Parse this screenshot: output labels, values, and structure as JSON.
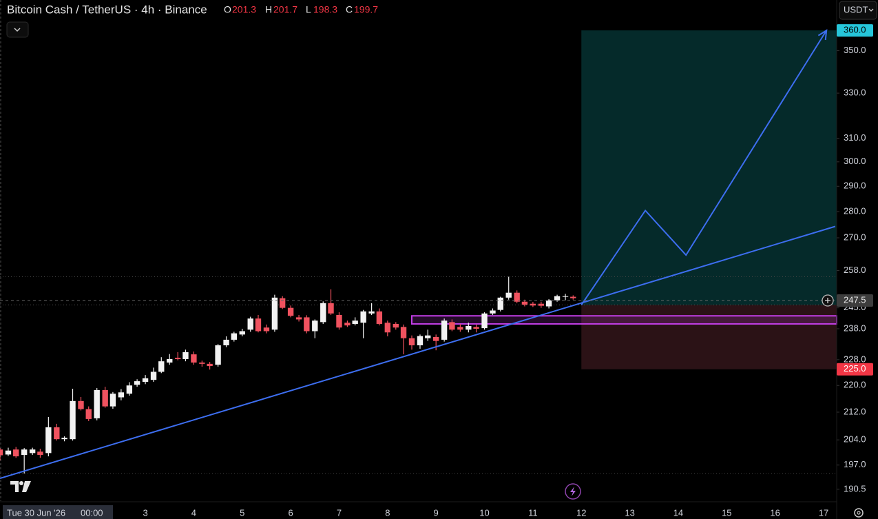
{
  "header": {
    "symbol": "Bitcoin Cash / TetherUS · 4h · Binance",
    "o": "O",
    "h": "H",
    "l": "L",
    "c": "C"
  },
  "currency": "USDT",
  "chart_data": {
    "type": "candlestick",
    "x": [
      0,
      0.17,
      0.33,
      0.5,
      0.67,
      0.83,
      1,
      1.17,
      1.33,
      1.5,
      1.67,
      1.83,
      2,
      2.17,
      2.33,
      2.5,
      2.67,
      2.83,
      3,
      3.17,
      3.33,
      3.5,
      3.67,
      3.83,
      4,
      4.17,
      4.33,
      4.5,
      4.67,
      4.83,
      5,
      5.17,
      5.33,
      5.5,
      5.67,
      5.83,
      6,
      6.17,
      6.33,
      6.5,
      6.67,
      6.83,
      7,
      7.17,
      7.33,
      7.5,
      7.67,
      7.83,
      8,
      8.17,
      8.33,
      8.5,
      8.67,
      8.83,
      9,
      9.17,
      9.33,
      9.5,
      9.67,
      9.83,
      10,
      10.17,
      10.33,
      10.5,
      10.67,
      10.83,
      11,
      11.17,
      11.33,
      11.5,
      11.67,
      11.83
    ],
    "open": [
      201.3,
      199.9,
      201.3,
      199.8,
      200.3,
      200.7,
      200.3,
      207.6,
      204.2,
      204.2,
      215.3,
      212.9,
      210.2,
      218.6,
      213.7,
      216.4,
      217.5,
      220.2,
      221.1,
      221.7,
      224.2,
      227.1,
      228.6,
      228.2,
      229.7,
      227.1,
      226.7,
      226.4,
      232.6,
      234.4,
      236.1,
      237.7,
      241.4,
      238.4,
      237.7,
      248.3,
      245.0,
      241.8,
      241.8,
      237.2,
      240.2,
      246.6,
      242.6,
      240.0,
      239.6,
      240.0,
      243.1,
      243.8,
      240.0,
      239.6,
      238.6,
      234.9,
      232.6,
      234.9,
      235.3,
      234.4,
      240.2,
      238.6,
      237.7,
      238.6,
      238.2,
      243.1,
      244.3,
      248.5,
      250.2,
      247.1,
      246.4,
      246.4,
      245.5,
      247.6,
      248.8,
      248.8
    ],
    "high": [
      201.7,
      201.8,
      202.0,
      201.7,
      201.8,
      201.5,
      210.6,
      208.6,
      205.0,
      219.0,
      216.5,
      213.7,
      219.2,
      219.6,
      218.0,
      218.9,
      221.0,
      221.9,
      223.2,
      225.5,
      228.8,
      229.8,
      230.4,
      231.2,
      230.6,
      227.7,
      227.3,
      233.0,
      235.5,
      237.0,
      238.0,
      242.0,
      242.6,
      239.4,
      249.5,
      249.0,
      245.8,
      242.6,
      242.5,
      241.1,
      247.2,
      251.4,
      243.5,
      240.7,
      241.8,
      244.3,
      246.6,
      244.8,
      240.7,
      240.2,
      239.4,
      235.8,
      236.1,
      237.7,
      236.1,
      241.4,
      241.1,
      239.6,
      240.0,
      239.4,
      243.5,
      244.8,
      248.8,
      255.8,
      251.0,
      247.8,
      247.0,
      247.1,
      248.0,
      249.5,
      249.8,
      249.3
    ],
    "low": [
      198.3,
      199.5,
      199.0,
      194.7,
      199.8,
      199.0,
      199.4,
      203.8,
      203.6,
      203.8,
      212.5,
      209.4,
      209.6,
      213.3,
      213.0,
      215.5,
      216.9,
      219.6,
      220.4,
      221.1,
      223.8,
      226.4,
      227.8,
      227.5,
      226.4,
      225.8,
      224.9,
      225.8,
      232.0,
      233.8,
      235.5,
      237.0,
      236.8,
      236.5,
      237.0,
      244.6,
      241.8,
      240.4,
      236.5,
      234.9,
      239.6,
      242.6,
      237.7,
      238.6,
      239.1,
      234.9,
      242.6,
      239.1,
      235.5,
      237.7,
      229.7,
      231.2,
      231.5,
      234.0,
      231.0,
      233.8,
      237.2,
      237.0,
      236.8,
      236.8,
      237.7,
      242.6,
      243.8,
      247.8,
      246.6,
      245.5,
      245.3,
      245.0,
      244.8,
      247.1,
      247.6,
      247.8
    ],
    "close": [
      199.7,
      201.0,
      199.4,
      201.3,
      201.3,
      199.8,
      207.6,
      204.2,
      204.6,
      215.3,
      212.9,
      210.0,
      218.6,
      213.7,
      217.5,
      217.9,
      220.0,
      221.3,
      222.2,
      224.2,
      227.5,
      228.2,
      228.2,
      230.4,
      227.1,
      226.7,
      226.0,
      232.6,
      234.4,
      236.5,
      237.2,
      241.4,
      237.2,
      237.2,
      248.5,
      245.0,
      242.3,
      241.1,
      237.2,
      240.7,
      246.6,
      243.1,
      238.4,
      239.1,
      240.7,
      243.8,
      243.8,
      239.6,
      236.8,
      238.4,
      234.9,
      232.6,
      235.6,
      235.8,
      234.0,
      240.7,
      237.7,
      237.7,
      238.9,
      238.0,
      243.1,
      244.1,
      248.5,
      250.2,
      247.1,
      246.1,
      245.8,
      245.7,
      247.6,
      249.0,
      249.0,
      248.3
    ],
    "up_color": "#f2f2f2",
    "down_color": "#f0525f",
    "log_y": true,
    "xlim": [
      0,
      17.27
    ],
    "ylim": [
      187.4,
      375.5
    ],
    "xticks": [
      {
        "value": 0,
        "label": "Tue 30 Jun '26"
      },
      3,
      4,
      5,
      6,
      7,
      8,
      9,
      10,
      11,
      12,
      13,
      14,
      15,
      16,
      17
    ],
    "cursor_time": "00:00",
    "yticks": [
      {
        "value": 350,
        "label": "350.0"
      },
      {
        "value": 330,
        "label": "330.0"
      },
      {
        "value": 310,
        "label": "310.0"
      },
      {
        "value": 300,
        "label": "300.0"
      },
      {
        "value": 290,
        "label": "290.0"
      },
      {
        "value": 280,
        "label": "280.0"
      },
      {
        "value": 270,
        "label": "270.0"
      },
      {
        "value": 258,
        "label": "258.0"
      },
      {
        "value": 245,
        "label": "245.0"
      },
      {
        "value": 238,
        "label": "238.0"
      },
      {
        "value": 228,
        "label": "228.0"
      },
      {
        "value": 220,
        "label": "220.0"
      },
      {
        "value": 212,
        "label": "212.0"
      },
      {
        "value": 204,
        "label": "204.0"
      },
      {
        "value": 197,
        "label": "197.0"
      },
      190.5
    ],
    "price_labels": [
      {
        "value": 360,
        "label": "360.0",
        "color": "#26c6da",
        "text_color": "#000000"
      },
      {
        "value": 247.5,
        "label": "247.5",
        "color": "#3d3d3d",
        "text_color": "#e8e8e8"
      },
      {
        "value": 225,
        "label": "225.0",
        "color": "#f23645",
        "text_color": "#ffffff"
      }
    ],
    "levels": [
      255.8,
      194.7
    ],
    "position": {
      "x": [
        12,
        17.27
      ],
      "entry": 246,
      "target": 360,
      "stop": 225,
      "profit_color": "#052a2a",
      "loss_color": "#2b1216"
    },
    "zone": {
      "x": [
        8.5,
        17.27
      ],
      "y": [
        239.6,
        242.3
      ],
      "color": "#c23ee6"
    },
    "trendline": {
      "x": [
        0,
        17.24
      ],
      "y": [
        193.4,
        274.3
      ],
      "color": "#3d6ef0"
    },
    "projection": {
      "x": [
        12,
        13.32,
        14.16,
        17.06
      ],
      "y": [
        246,
        280.4,
        263.6,
        360
      ],
      "color": "#3d6ef0"
    }
  }
}
